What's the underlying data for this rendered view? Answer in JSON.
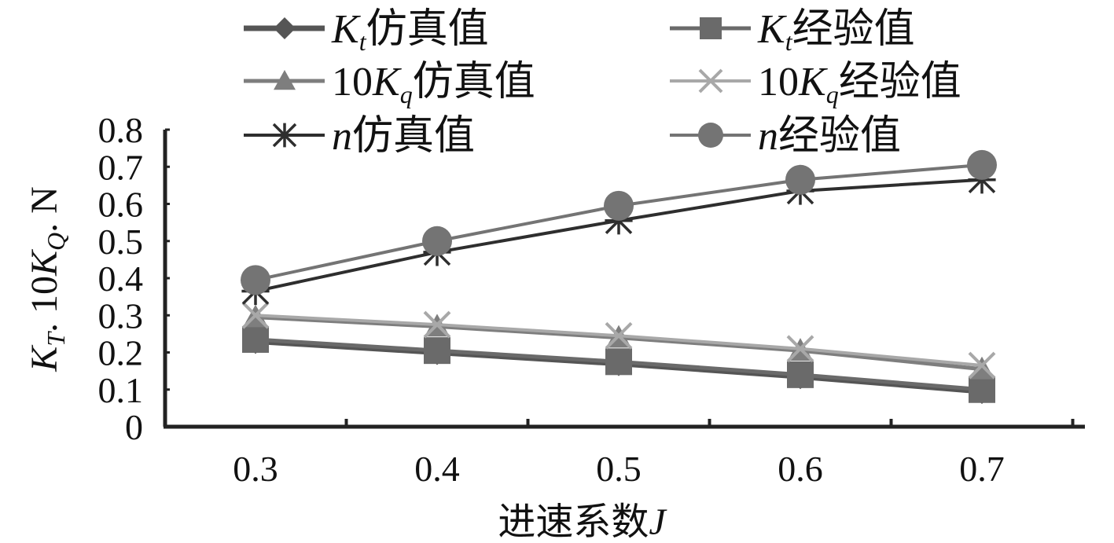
{
  "chart_data": {
    "type": "line",
    "x": [
      0.3,
      0.4,
      0.5,
      0.6,
      0.7
    ],
    "x_ticks": [
      "0.3",
      "0.4",
      "0.5",
      "0.6",
      "0.7"
    ],
    "y_ticks": [
      "0",
      "0.1",
      "0.2",
      "0.3",
      "0.4",
      "0.5",
      "0.6",
      "0.7",
      "0.8"
    ],
    "ylim": [
      0,
      0.8
    ],
    "xlabel": {
      "text": "进速系数",
      "var": "J"
    },
    "ylabel": {
      "parts": [
        {
          "t": "K",
          "italic": true
        },
        {
          "t": "T",
          "sub": true
        },
        {
          "t": ". 10"
        },
        {
          "t": "K",
          "italic": true
        },
        {
          "t": "Q",
          "sub": true
        },
        {
          "t": ". N"
        }
      ]
    },
    "grid": false,
    "legend_position": "top",
    "series": [
      {
        "key": "kt_sim",
        "sym": "K",
        "sym_sub": "t",
        "prefix": "",
        "suffix": "仿真值",
        "marker": "diamond",
        "color": "#555555",
        "stroke_width": 7,
        "values": [
          0.23,
          0.2,
          0.17,
          0.135,
          0.095
        ]
      },
      {
        "key": "kt_emp",
        "sym": "K",
        "sym_sub": "t",
        "prefix": "",
        "suffix": "经验值",
        "marker": "square",
        "color": "#6a6a6a",
        "stroke_width": 5,
        "values": [
          0.235,
          0.205,
          0.175,
          0.14,
          0.1
        ]
      },
      {
        "key": "kq_sim",
        "sym": "K",
        "sym_sub": "q",
        "prefix": "10",
        "suffix": "仿真值",
        "marker": "triangle",
        "color": "#7e7e7e",
        "stroke_width": 5,
        "values": [
          0.295,
          0.27,
          0.24,
          0.205,
          0.155
        ]
      },
      {
        "key": "kq_emp",
        "sym": "K",
        "sym_sub": "q",
        "prefix": "10",
        "suffix": "经验值",
        "marker": "x",
        "color": "#a8a8a8",
        "stroke_width": 4,
        "values": [
          0.3,
          0.275,
          0.245,
          0.21,
          0.165
        ]
      },
      {
        "key": "n_sim",
        "sym": "n",
        "sym_sub": "",
        "prefix": "",
        "suffix": "仿真值",
        "marker": "star",
        "color": "#2e2e2e",
        "stroke_width": 4,
        "values": [
          0.365,
          0.47,
          0.555,
          0.635,
          0.665
        ]
      },
      {
        "key": "n_emp",
        "sym": "n",
        "sym_sub": "",
        "prefix": "",
        "suffix": "经验值",
        "marker": "circle",
        "color": "#747474",
        "stroke_width": 4,
        "values": [
          0.395,
          0.5,
          0.595,
          0.665,
          0.705
        ]
      }
    ]
  }
}
